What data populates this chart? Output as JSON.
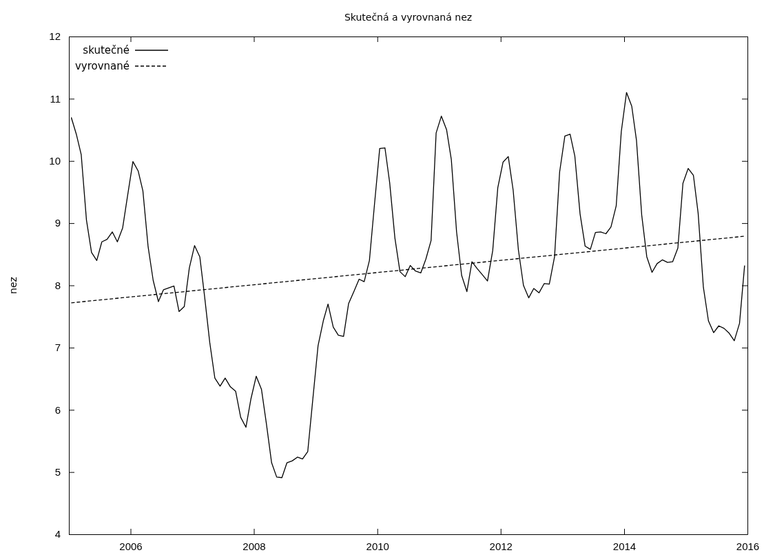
{
  "chart_data": {
    "type": "line",
    "title": "Skutečná a vyrovnaná nez",
    "ylabel": "nez",
    "x": [
      "2005-01-15",
      "2005-02-15",
      "2005-03-15",
      "2005-04-15",
      "2005-05-15",
      "2005-06-15",
      "2005-07-15",
      "2005-08-15",
      "2005-09-15",
      "2005-10-15",
      "2005-11-15",
      "2005-12-15",
      "2006-01-15",
      "2006-02-15",
      "2006-03-15",
      "2006-04-15",
      "2006-05-15",
      "2006-06-15",
      "2006-07-15",
      "2006-08-15",
      "2006-09-15",
      "2006-10-15",
      "2006-11-15",
      "2006-12-15",
      "2007-01-15",
      "2007-02-15",
      "2007-03-15",
      "2007-04-15",
      "2007-05-15",
      "2007-06-15",
      "2007-07-15",
      "2007-08-15",
      "2007-09-15",
      "2007-10-15",
      "2007-11-15",
      "2007-12-15",
      "2008-01-15",
      "2008-02-15",
      "2008-03-15",
      "2008-04-15",
      "2008-05-15",
      "2008-06-15",
      "2008-07-15",
      "2008-08-15",
      "2008-09-15",
      "2008-10-15",
      "2008-11-15",
      "2008-12-15",
      "2009-01-15",
      "2009-02-15",
      "2009-03-15",
      "2009-04-15",
      "2009-05-15",
      "2009-06-15",
      "2009-07-15",
      "2009-08-15",
      "2009-09-15",
      "2009-10-15",
      "2009-11-15",
      "2009-12-15",
      "2010-01-15",
      "2010-02-15",
      "2010-03-15",
      "2010-04-15",
      "2010-05-15",
      "2010-06-15",
      "2010-07-15",
      "2010-08-15",
      "2010-09-15",
      "2010-10-15",
      "2010-11-15",
      "2010-12-15",
      "2011-01-15",
      "2011-02-15",
      "2011-03-15",
      "2011-04-15",
      "2011-05-15",
      "2011-06-15",
      "2011-07-15",
      "2011-08-15",
      "2011-09-15",
      "2011-10-15",
      "2011-11-15",
      "2011-12-15",
      "2012-01-15",
      "2012-02-15",
      "2012-03-15",
      "2012-04-15",
      "2012-05-15",
      "2012-06-15",
      "2012-07-15",
      "2012-08-15",
      "2012-09-15",
      "2012-10-15",
      "2012-11-15",
      "2012-12-15",
      "2013-01-15",
      "2013-02-15",
      "2013-03-15",
      "2013-04-15",
      "2013-05-15",
      "2013-06-15",
      "2013-07-15",
      "2013-08-15",
      "2013-09-15",
      "2013-10-15",
      "2013-11-15",
      "2013-12-15",
      "2014-01-15",
      "2014-02-15",
      "2014-03-15",
      "2014-04-15",
      "2014-05-15",
      "2014-06-15",
      "2014-07-15",
      "2014-08-15",
      "2014-09-15",
      "2014-10-15",
      "2014-11-15",
      "2014-12-15",
      "2015-01-15",
      "2015-02-15",
      "2015-03-15",
      "2015-04-15",
      "2015-05-15",
      "2015-06-15",
      "2015-07-15",
      "2015-08-15",
      "2015-09-15",
      "2015-10-15",
      "2015-11-15",
      "2015-12-15"
    ],
    "series": [
      {
        "name": "skutečné",
        "color": "#000000",
        "line_style": "solid",
        "values": [
          10.7,
          10.42,
          10.1,
          9.05,
          8.53,
          8.4,
          8.7,
          8.74,
          8.86,
          8.7,
          8.92,
          9.45,
          9.99,
          9.84,
          9.52,
          8.62,
          8.08,
          7.74,
          7.93,
          7.96,
          7.99,
          7.58,
          7.66,
          8.28,
          8.64,
          8.46,
          7.83,
          7.08,
          6.51,
          6.38,
          6.51,
          6.37,
          6.3,
          5.88,
          5.72,
          6.18,
          6.54,
          6.33,
          5.78,
          5.15,
          4.92,
          4.91,
          5.15,
          5.18,
          5.24,
          5.21,
          5.33,
          6.17,
          7.03,
          7.43,
          7.7,
          7.33,
          7.2,
          7.18,
          7.71,
          7.9,
          8.1,
          8.06,
          8.4,
          9.3,
          10.2,
          10.21,
          9.65,
          8.76,
          8.22,
          8.14,
          8.32,
          8.23,
          8.2,
          8.42,
          8.72,
          10.45,
          10.72,
          10.5,
          10.02,
          8.86,
          8.16,
          7.9,
          8.38,
          8.27,
          8.17,
          8.07,
          8.56,
          9.57,
          9.98,
          10.07,
          9.53,
          8.57,
          8.0,
          7.8,
          7.95,
          7.88,
          8.03,
          8.02,
          8.46,
          9.82,
          10.4,
          10.43,
          10.08,
          9.15,
          8.63,
          8.58,
          8.85,
          8.86,
          8.83,
          8.94,
          9.28,
          10.47,
          11.1,
          10.88,
          10.33,
          9.13,
          8.46,
          8.21,
          8.35,
          8.41,
          8.37,
          8.38,
          8.6,
          9.64,
          9.88,
          9.77,
          9.16,
          7.97,
          7.43,
          7.24,
          7.35,
          7.31,
          7.23,
          7.11,
          7.39,
          8.32
        ]
      },
      {
        "name": "vyrovnané",
        "color": "#000000",
        "line_style": "dashed",
        "x": [
          "2005-01-15",
          "2015-12-15"
        ],
        "values": [
          7.72,
          8.79
        ]
      }
    ],
    "xlim": [
      "2005",
      "2016"
    ],
    "xticks": [
      "2006",
      "2008",
      "2010",
      "2012",
      "2014",
      "2016"
    ],
    "ylim": [
      4,
      12
    ],
    "yticks": [
      4,
      5,
      6,
      7,
      8,
      9,
      10,
      11,
      12
    ],
    "grid": false,
    "legend": "top left"
  }
}
